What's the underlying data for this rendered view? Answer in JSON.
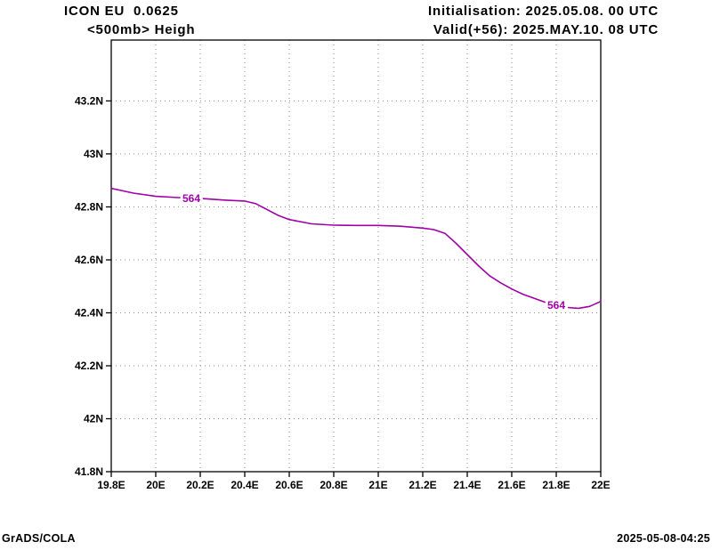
{
  "header": {
    "model_line": "ICON EU  0.0625",
    "level_line": "<500mb> Heigh",
    "init_line": "Initialisation: 2025.05.08. 00 UTC",
    "valid_line": "Valid(+56): 2025.MAY.10. 08 UTC"
  },
  "footer": {
    "left": "GrADS/COLA",
    "right": "2025-05-08-04:25"
  },
  "chart_data": {
    "type": "line",
    "grid": "dotted",
    "xlim": [
      19.8,
      22.0
    ],
    "ylim": [
      41.8,
      43.43
    ],
    "xticks": [
      19.8,
      20,
      20.2,
      20.4,
      20.6,
      20.8,
      21,
      21.2,
      21.4,
      21.6,
      21.8,
      22
    ],
    "xtick_labels": [
      "19.8E",
      "20E",
      "20.2E",
      "20.4E",
      "20.6E",
      "20.8E",
      "21E",
      "21.2E",
      "21.4E",
      "21.6E",
      "21.8E",
      "22E"
    ],
    "yticks": [
      41.8,
      42,
      42.2,
      42.4,
      42.6,
      42.8,
      43,
      43.2
    ],
    "ytick_labels": [
      "41.8N",
      "42N",
      "42.2N",
      "42.4N",
      "42.6N",
      "42.8N",
      "43N",
      "43.2N"
    ],
    "series": [
      {
        "name": "564-dam-height-contour",
        "color": "#a000a8",
        "x": [
          19.8,
          19.9,
          20.0,
          20.1,
          20.2,
          20.3,
          20.4,
          20.45,
          20.5,
          20.55,
          20.6,
          20.7,
          20.8,
          20.9,
          21.0,
          21.1,
          21.2,
          21.25,
          21.3,
          21.35,
          21.4,
          21.45,
          21.5,
          21.55,
          21.6,
          21.65,
          21.7,
          21.75,
          21.8,
          21.85,
          21.9,
          21.95,
          22.0
        ],
        "y": [
          42.87,
          42.852,
          42.84,
          42.835,
          42.832,
          42.826,
          42.822,
          42.812,
          42.79,
          42.768,
          42.752,
          42.736,
          42.731,
          42.73,
          42.73,
          42.727,
          42.72,
          42.714,
          42.7,
          42.662,
          42.62,
          42.578,
          42.54,
          42.513,
          42.49,
          42.47,
          42.455,
          42.44,
          42.43,
          42.42,
          42.417,
          42.424,
          42.443
        ]
      }
    ],
    "contour_labels": [
      {
        "text": "564",
        "lon": 20.16,
        "lat": 42.832
      },
      {
        "text": "564",
        "lon": 21.8,
        "lat": 42.428
      }
    ]
  }
}
